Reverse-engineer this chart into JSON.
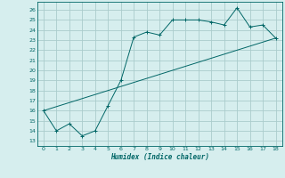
{
  "xlabel": "Humidex (Indice chaleur)",
  "background_color": "#d6eeee",
  "line_color": "#006666",
  "grid_color": "#aacccc",
  "xlim": [
    -0.5,
    18.5
  ],
  "ylim": [
    12.5,
    26.8
  ],
  "xticks": [
    0,
    1,
    2,
    3,
    4,
    5,
    6,
    7,
    8,
    9,
    10,
    11,
    12,
    13,
    14,
    15,
    16,
    17,
    18
  ],
  "yticks": [
    13,
    14,
    15,
    16,
    17,
    18,
    19,
    20,
    21,
    22,
    23,
    24,
    25,
    26
  ],
  "curve_x": [
    0,
    1,
    2,
    3,
    4,
    5,
    6,
    7,
    8,
    9,
    10,
    11,
    12,
    13,
    14,
    15,
    16,
    17,
    18
  ],
  "curve_y": [
    16.0,
    14.0,
    14.7,
    13.5,
    14.0,
    16.5,
    19.0,
    23.3,
    23.8,
    23.5,
    25.0,
    25.0,
    25.0,
    24.8,
    24.5,
    26.2,
    24.3,
    24.5,
    23.2
  ],
  "line_x": [
    0,
    18
  ],
  "line_y": [
    16.0,
    23.2
  ]
}
